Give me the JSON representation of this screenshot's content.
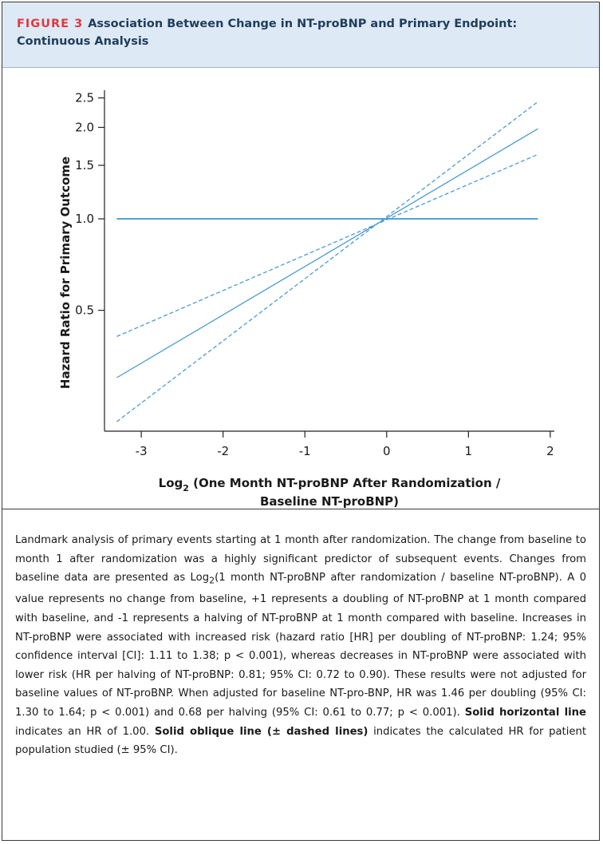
{
  "figure": {
    "label": "FIGURE 3",
    "title": "Association Between Change in NT-proBNP and Primary Endpoint: Continuous Analysis"
  },
  "chart_data": {
    "type": "line",
    "xlabel_line1": "Log",
    "xlabel_sub": "2",
    "xlabel_line1_rest": " (One Month NT-proBNP After Randomization /",
    "xlabel_line2": "Baseline NT-proBNP)",
    "ylabel": "Hazard Ratio for Primary Outcome",
    "y_scale": "log",
    "x_ticks": [
      -3,
      -2,
      -1,
      0,
      1,
      2
    ],
    "x_tick_labels": [
      "-3",
      "-2",
      "-1",
      "0",
      "1",
      "2"
    ],
    "y_ticks": [
      0.5,
      1.0,
      1.5,
      2.0,
      2.5
    ],
    "y_tick_labels": [
      "0.5",
      "1.0",
      "1.5",
      "2.0",
      "2.5"
    ],
    "xlim": [
      -3.45,
      2.05
    ],
    "ylim": [
      0.2,
      2.65
    ],
    "grid": false,
    "line_color": "#4a9bd1",
    "series": [
      {
        "role": "reference",
        "style": "solid",
        "x": [
          -3.3,
          1.85
        ],
        "y": [
          1.0,
          1.0
        ]
      },
      {
        "role": "estimate",
        "style": "solid",
        "x": [
          -3.3,
          1.85
        ],
        "y": [
          0.3,
          1.98
        ]
      },
      {
        "role": "upper-ci",
        "style": "dashed",
        "x": [
          -3.3,
          1.85
        ],
        "y": [
          0.41,
          1.63
        ]
      },
      {
        "role": "lower-ci",
        "style": "dashed",
        "x": [
          -3.3,
          1.85
        ],
        "y": [
          0.215,
          2.43
        ]
      }
    ]
  },
  "caption": {
    "p1": "Landmark analysis of primary events starting at 1 month after randomization. The change from baseline to month 1 after randomization was a highly significant predictor of subsequent events. Changes from baseline data are presented as Log",
    "p1_sub": "2",
    "p2": "(1 month NT-proBNP after randomization / baseline NT-proBNP). A 0 value represents no change from baseline, +1 represents a doubling of NT-proBNP at 1 month compared with baseline, and -1 represents a halving of NT-proBNP at 1 month compared with baseline. Increases in NT-proBNP were associated with increased risk (hazard ratio [HR] per doubling of NT-proBNP: 1.24; 95% confidence interval [CI]: 1.11 to 1.38; p < 0.001), whereas decreases in NT-proBNP were associated with lower risk (HR per halving of NT-proBNP: 0.81; 95% CI: 0.72 to 0.90). These results were not adjusted for baseline values of NT-proBNP. When adjusted for baseline NT-pro-BNP, HR was 1.46 per doubling (95% CI: 1.30 to 1.64; p < 0.001) and 0.68 per halving (95% CI: 0.61 to 0.77; p < 0.001). ",
    "bold1": "Solid horizontal line",
    "p3": " indicates an HR of 1.00. ",
    "bold2": "Solid oblique line (± dashed lines)",
    "p4": " indicates the calculated HR for patient population studied (± 95% CI)."
  }
}
